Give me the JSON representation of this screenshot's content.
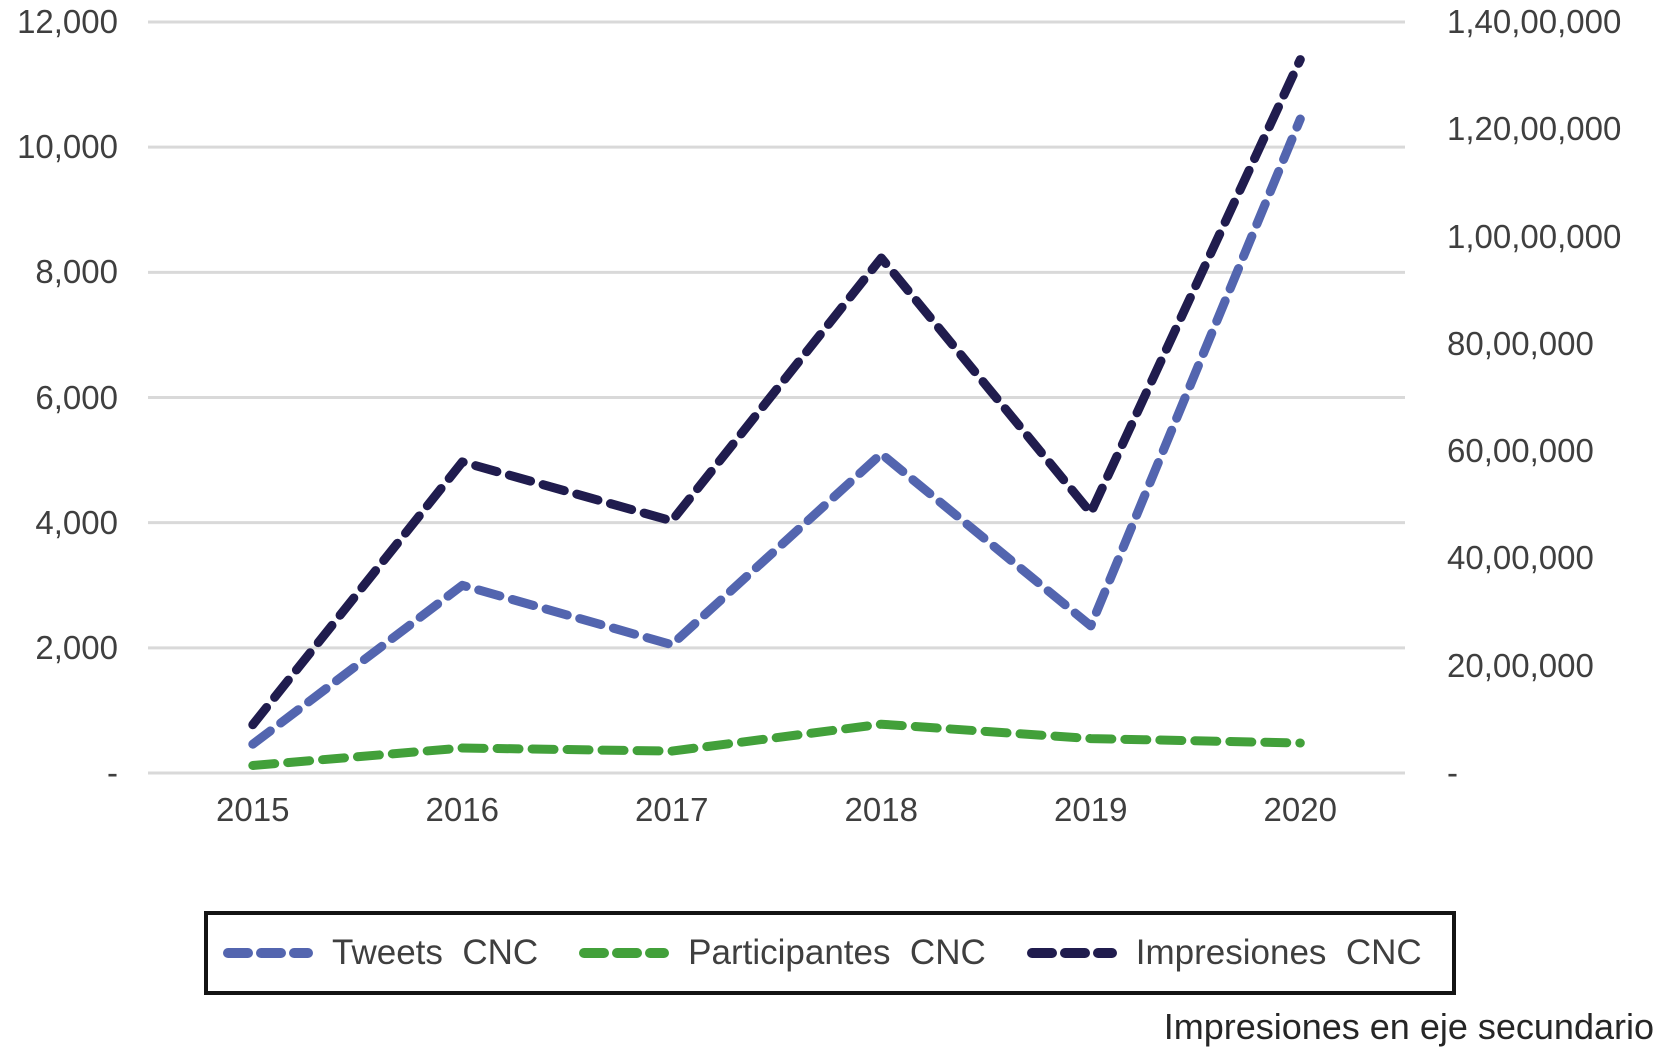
{
  "chart_data": {
    "type": "line",
    "title": "",
    "line_style": "dashed",
    "grid": true,
    "legend_position": "bottom",
    "categories": [
      "2015",
      "2016",
      "2017",
      "2018",
      "2019",
      "2020"
    ],
    "series": [
      {
        "name": "Tweets CNC",
        "axis": "left",
        "color": "#5365af",
        "values": [
          460,
          3000,
          2050,
          5100,
          2350,
          10450
        ]
      },
      {
        "name": "Participantes CNC",
        "axis": "left",
        "color": "#42a03a",
        "values": [
          120,
          400,
          350,
          780,
          550,
          480
        ]
      },
      {
        "name": "Impresiones CNC",
        "axis": "right",
        "color": "#201c4e",
        "values": [
          900000,
          5800000,
          4700000,
          9600000,
          4850000,
          13300000
        ]
      }
    ],
    "left_axis": {
      "min": 0,
      "max": 12000,
      "step": 2000,
      "tick_labels": [
        "-",
        "2,000",
        "4,000",
        "6,000",
        "8,000",
        "10,000",
        "12,000"
      ]
    },
    "right_axis": {
      "min": 0,
      "max": 14000000,
      "step": 2000000,
      "tick_labels": [
        "-",
        "20,00,000",
        "40,00,000",
        "60,00,000",
        "80,00,000",
        "1,00,00,000",
        "1,20,00,000",
        "1,40,00,000"
      ]
    }
  },
  "legend": {
    "items": [
      {
        "label": "Tweets  CNC",
        "color": "#5365af"
      },
      {
        "label": "Participantes  CNC",
        "color": "#42a03a"
      },
      {
        "label": "Impresiones  CNC",
        "color": "#201c4e"
      }
    ]
  },
  "footnote": "Impresiones en eje secundario",
  "colors": {
    "background": "#ffffff",
    "grid": "#d9d9d9",
    "axis_text": "#3f3f3f",
    "legend_border": "#141414"
  }
}
